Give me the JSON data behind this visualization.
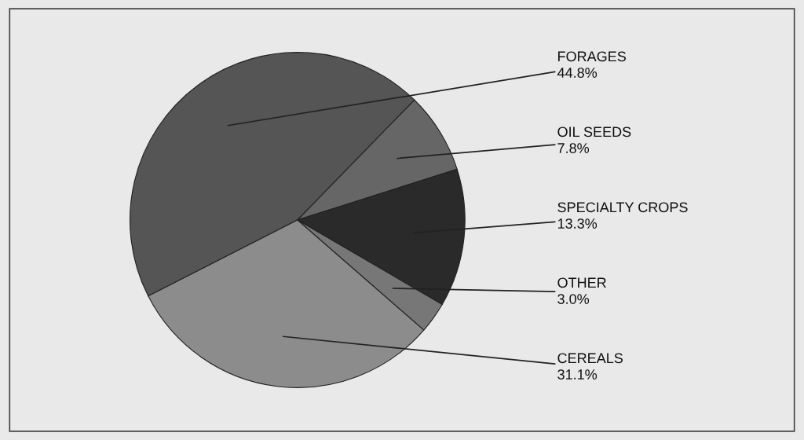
{
  "chart_data": {
    "type": "pie",
    "categories": [
      "FORAGES",
      "OIL SEEDS",
      "SPECIALTY CROPS",
      "OTHER",
      "CEREALS"
    ],
    "values": [
      44.8,
      7.8,
      13.3,
      3.0,
      31.1
    ],
    "colors": [
      "#555555",
      "#666666",
      "#2a2a2a",
      "#777777",
      "#8c8c8c"
    ],
    "value_labels": [
      "44.8%",
      "7.8%",
      "13.3%",
      "3.0%",
      "31.1%"
    ]
  }
}
